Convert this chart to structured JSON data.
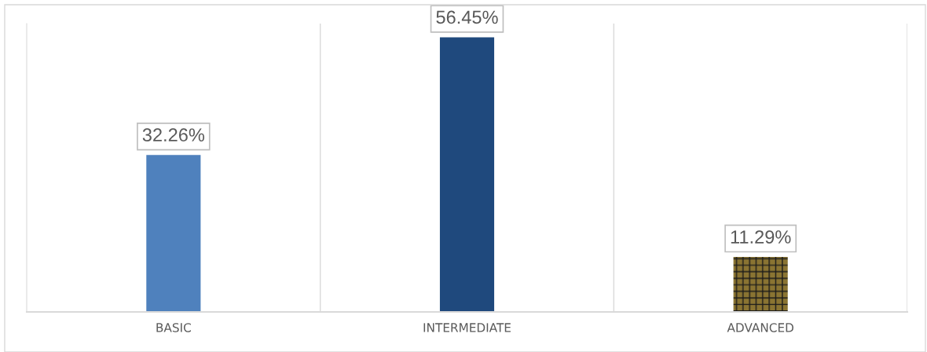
{
  "chart_data": {
    "type": "bar",
    "categories": [
      "BASIC",
      "INTERMEDIATE",
      "ADVANCED"
    ],
    "values": [
      32.26,
      56.45,
      11.29
    ],
    "colors": [
      "#4f81bd",
      "#1f497d",
      "#8a7432"
    ],
    "value_labels": [
      "32.26%",
      "56.45%",
      "11.29%"
    ],
    "grid": "x"
  }
}
